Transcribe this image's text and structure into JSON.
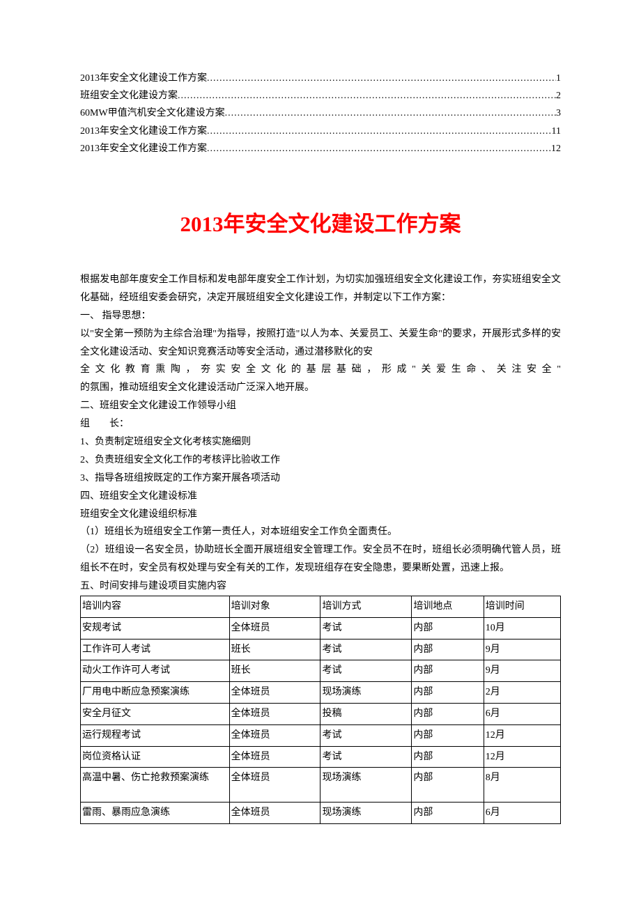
{
  "toc": {
    "items": [
      {
        "label": "2013年安全文化建设工作方案",
        "page": "1"
      },
      {
        "label": "班组安全文化建设方案",
        "page": "2"
      },
      {
        "label": "60MW甲值汽机安全文化建设方案",
        "page": "3"
      },
      {
        "label": "2013年安全文化建设工作方案",
        "page": "11"
      },
      {
        "label": "2013年安全文化建设工作方案",
        "page": "12"
      }
    ]
  },
  "title": "2013年安全文化建设工作方案",
  "paragraphs": {
    "intro": "根据发电部年度安全工作目标和发电部年度安全工作计划，为切实加强班组安全文化建设工作，夯实班组安全文化基础，经班组安委会研究，决定开展班组安全文化建设工作，并制定以下工作方案：",
    "section1_title": "一、 指导思想：",
    "section1_p1": "以\"安全第一预防为主综合治理\"为指导，按照打造\"以人为本、关爱员工、关爱生命\"的要求，开展形式多样的安全文化建设活动、安全知识竞赛活动等安全活动，通过潜移默化的安",
    "section1_p2": "全文化教育熏陶，夯实安全文化的基层基础，形成\"关爱生命、关注安全\"",
    "section1_p3": "的氛围，推动班组安全文化建设活动广泛深入地开展。",
    "section2_title": "二、班组安全文化建设工作领导小组",
    "section2_leader": "组　　长：",
    "section2_duty1": "1、负责制定班组安全文化考核实施细则",
    "section2_duty2": "2、负责班组安全文化工作的考核评比验收工作",
    "section2_duty3": "3、指导各班组按既定的工作方案开展各项活动",
    "section4_title": "四、班组安全文化建设标准",
    "section4_subtitle": "班组安全文化建设组织标准",
    "section4_item1": "（1）班组长为班组安全工作第一责任人，对本班组安全工作负全面责任。",
    "section4_item2": "（2）班组设一名安全员，协助班长全面开展班组安全管理工作。安全员不在时，班组长必须明确代管人员，班组长不在时，安全员有权处理与安全有关的工作，发现班组存在安全隐患，要果断处置，迅速上报。",
    "section5_title": "五、时间安排与建设项目实施内容"
  },
  "table": {
    "headers": {
      "content": "培训内容",
      "target": "培训对象",
      "method": "培训方式",
      "location": "培训地点",
      "time": "培训时间"
    },
    "rows": [
      {
        "content": "安规考试",
        "target": "全体班员",
        "method": "考试",
        "location": "内部",
        "time": "10月",
        "tall": false
      },
      {
        "content": "工作许可人考试",
        "target": "班长",
        "method": "考试",
        "location": "内部",
        "time": "9月",
        "tall": false
      },
      {
        "content": "动火工作许可人考试",
        "target": "班长",
        "method": "考试",
        "location": "内部",
        "time": "9月",
        "tall": false
      },
      {
        "content": "厂用电中断应急预案演练",
        "target": "全体班员",
        "method": "现场演练",
        "location": "内部",
        "time": "2月",
        "tall": false
      },
      {
        "content": "安全月征文",
        "target": "全体班员",
        "method": "投稿",
        "location": "内部",
        "time": "6月",
        "tall": false
      },
      {
        "content": "运行规程考试",
        "target": "全体班员",
        "method": "考试",
        "location": "内部",
        "time": "12月",
        "tall": false
      },
      {
        "content": "岗位资格认证",
        "target": "全体班员",
        "method": "考试",
        "location": "内部",
        "time": "12月",
        "tall": false
      },
      {
        "content": "高温中暑、伤亡抢救预案演练",
        "target": "全体班员",
        "method": "现场演练",
        "location": "内部",
        "time": "8月",
        "tall": true
      },
      {
        "content": "雷雨、暴雨应急演练",
        "target": "全体班员",
        "method": "现场演练",
        "location": "内部",
        "time": "6月",
        "tall": false
      }
    ]
  },
  "colors": {
    "title_color": "#ff0000",
    "text_color": "#000000",
    "background": "#ffffff",
    "border_color": "#000000"
  },
  "typography": {
    "title_fontsize": 31,
    "body_fontsize": 14,
    "toc_fontsize": 14,
    "line_height": 1.85
  }
}
